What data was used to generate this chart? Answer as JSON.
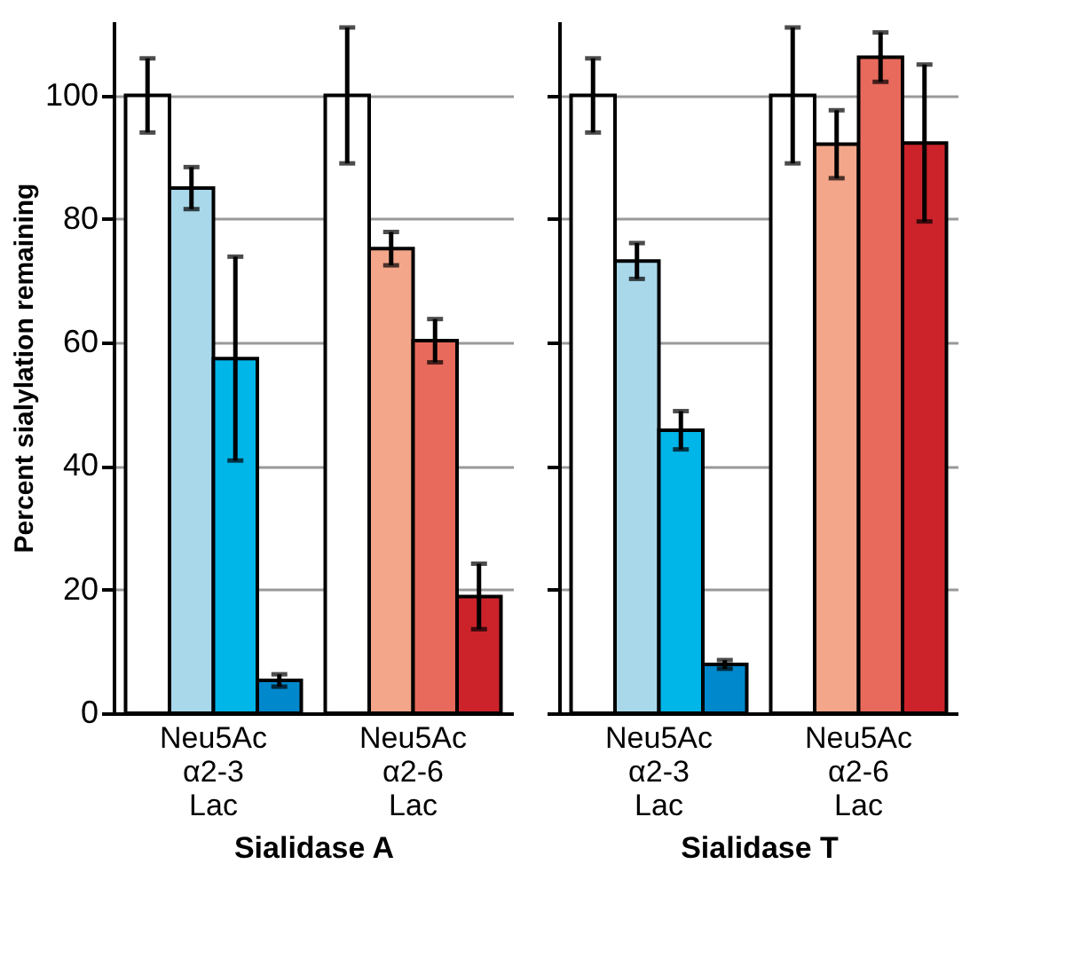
{
  "chart_data": [
    {
      "type": "bar",
      "xlabel": "Sialidase A",
      "ylabel": "Percent sialylation remaining",
      "categories": [
        "Neu5Ac\nα2-3\nLac",
        "Neu5Ac\nα2-6\nLac"
      ],
      "ylim": [
        0,
        112
      ],
      "yticks": [
        0,
        20,
        40,
        60,
        80,
        100
      ],
      "grid": "y",
      "series": [
        {
          "colors": [
            "#ffffff",
            "#ffffff"
          ],
          "values": [
            100,
            100
          ],
          "errors": [
            6,
            11
          ]
        },
        {
          "colors": [
            "#a9d8ea",
            "#f4a68a"
          ],
          "values": [
            85.0,
            75.2
          ],
          "errors": [
            3.4,
            2.7
          ]
        },
        {
          "colors": [
            "#00b5e8",
            "#e86a5c"
          ],
          "values": [
            57.4,
            60.3
          ],
          "errors": [
            16.5,
            3.5
          ]
        },
        {
          "colors": [
            "#0088cc",
            "#cc232b"
          ],
          "values": [
            5.3,
            18.9
          ],
          "errors": [
            1,
            5.3
          ]
        }
      ]
    },
    {
      "type": "bar",
      "xlabel": "Sialidase T",
      "categories": [
        "Neu5Ac\nα2-3\nLac",
        "Neu5Ac\nα2-6\nLac"
      ],
      "ylim": [
        0,
        112
      ],
      "yticks": [
        0,
        20,
        40,
        60,
        80,
        100
      ],
      "grid": "y",
      "tick_labels": "x",
      "series": [
        {
          "colors": [
            "#ffffff",
            "#ffffff"
          ],
          "values": [
            100,
            100
          ],
          "errors": [
            6,
            11
          ]
        },
        {
          "colors": [
            "#a9d8ea",
            "#f4a68a"
          ],
          "values": [
            73.2,
            92.1
          ],
          "errors": [
            2.9,
            5.5
          ]
        },
        {
          "colors": [
            "#00b5e8",
            "#e86a5c"
          ],
          "values": [
            45.8,
            106.2
          ],
          "errors": [
            3.1,
            4
          ]
        },
        {
          "colors": [
            "#0088cc",
            "#cc232b"
          ],
          "values": [
            7.9,
            92.3
          ],
          "errors": [
            0.7,
            12.7
          ]
        }
      ]
    }
  ]
}
